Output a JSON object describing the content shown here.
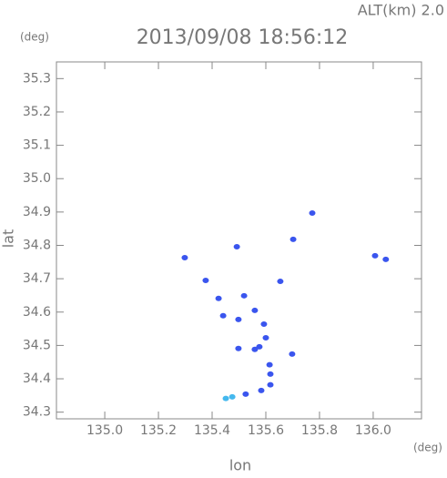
{
  "chart_data": {
    "type": "scatter",
    "title": "2013/09/08 18:56:12",
    "annotation": "ALT(km) 2.0",
    "y_unit": "(deg)",
    "x_unit": "(deg)",
    "xlabel": "lon",
    "ylabel": "lat",
    "xlim": [
      134.82,
      136.18
    ],
    "ylim": [
      34.28,
      35.35
    ],
    "xticks": [
      {
        "value": 135.0,
        "label": "135.0"
      },
      135.2,
      135.4,
      135.6,
      135.8,
      {
        "value": 136.0,
        "label": "136.0"
      }
    ],
    "yticks": [
      34.3,
      34.4,
      34.5,
      34.6,
      34.7,
      34.8,
      34.9,
      {
        "value": 35.0,
        "label": "35.0"
      },
      35.1,
      35.2,
      35.3
    ],
    "series": [
      {
        "color": "#3a55ee",
        "x": [
          135.773,
          136.007,
          136.047,
          135.298,
          135.492,
          135.702,
          135.654,
          135.376,
          135.424,
          135.519,
          135.441,
          135.498,
          135.559,
          135.593,
          135.6,
          135.576,
          135.498,
          135.559,
          135.698,
          135.614,
          135.617,
          135.617,
          135.583,
          135.525
        ],
        "values": [
          34.897,
          34.769,
          34.758,
          34.763,
          34.796,
          34.818,
          34.692,
          34.695,
          34.641,
          34.649,
          34.589,
          34.578,
          34.605,
          34.564,
          34.523,
          34.496,
          34.491,
          34.488,
          34.474,
          34.442,
          34.414,
          34.382,
          34.365,
          34.354
        ]
      },
      {
        "color": "#44b8ee",
        "x": [
          135.475,
          135.451
        ],
        "values": [
          34.346,
          34.341
        ]
      }
    ]
  }
}
